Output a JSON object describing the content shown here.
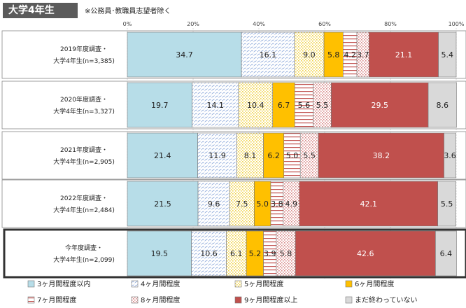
{
  "header": {
    "badge": "大学4年生",
    "note": "※公務員･教職員志望者除く"
  },
  "chart_data": {
    "type": "bar",
    "orientation": "horizontal",
    "stacked": true,
    "xlim": [
      0,
      100
    ],
    "x_ticks": [
      "0%",
      "20%",
      "40%",
      "60%",
      "80%",
      "100%"
    ],
    "grid": true,
    "legend_position": "bottom",
    "categories": [
      {
        "line1": "2019年度調査・",
        "line2": "大学4年生(n=3,385)"
      },
      {
        "line1": "2020年度調査・",
        "line2": "大学4年生(n=3,327)"
      },
      {
        "line1": "2021年度調査・",
        "line2": "大学4年生(n=2,905)"
      },
      {
        "line1": "2022年度調査・",
        "line2": "大学4年生(n=2,484)"
      },
      {
        "line1": "今年度調査・",
        "line2": "大学4年生(n=2,099)"
      }
    ],
    "highlighted_category_index": 4,
    "series": [
      {
        "name": "3ヶ月間程度以内",
        "color": "#b7dde8",
        "pattern": "solid",
        "values": [
          34.7,
          19.7,
          21.4,
          21.5,
          19.5
        ]
      },
      {
        "name": "4ヶ月間程度",
        "color": "#4472c4",
        "pattern": "diagonal-dash",
        "values": [
          16.1,
          14.1,
          11.9,
          9.6,
          10.6
        ]
      },
      {
        "name": "5ヶ月間程度",
        "color": "#f1d34a",
        "pattern": "dots",
        "values": [
          9.0,
          10.4,
          8.1,
          7.5,
          6.1
        ]
      },
      {
        "name": "6ヶ月間程度",
        "color": "#ffc000",
        "pattern": "solid",
        "values": [
          5.8,
          6.7,
          6.2,
          5.0,
          5.2
        ]
      },
      {
        "name": "7ヶ月間程度",
        "color": "#c0504d",
        "pattern": "horizontal-lines",
        "values": [
          4.2,
          5.6,
          5.0,
          3.8,
          3.9
        ]
      },
      {
        "name": "8ヶ月間程度",
        "color": "#c0504d",
        "pattern": "dots",
        "values": [
          3.7,
          5.5,
          5.5,
          4.9,
          5.8
        ]
      },
      {
        "name": "9ヶ月間程度以上",
        "color": "#c0504d",
        "pattern": "solid",
        "values": [
          21.1,
          29.5,
          38.2,
          42.1,
          42.6
        ]
      },
      {
        "name": "まだ終わっていない",
        "color": "#d9d9d9",
        "pattern": "solid",
        "values": [
          5.4,
          8.6,
          3.6,
          5.5,
          6.4
        ]
      }
    ]
  }
}
